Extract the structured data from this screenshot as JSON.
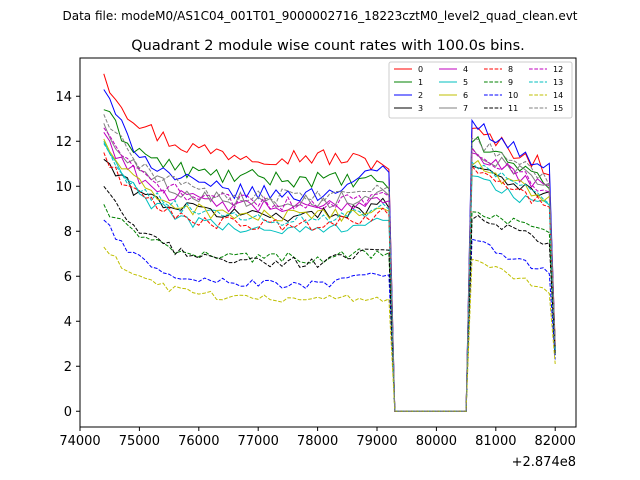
{
  "figure": {
    "suptitle": "Data file: modeM0/AS1C04_001T01_9000002716_18223cztM0_level2_quad_clean.evt",
    "title": "Quadrant 2 module wise count rates with 100.0s bins.",
    "x_offset_label": "+2.874e8"
  },
  "chart_data": {
    "type": "line",
    "title": "Quadrant 2 module wise count rates with 100.0s bins.",
    "xlabel": "",
    "ylabel": "",
    "x_offset": 287400000,
    "xlim": [
      74000,
      82350
    ],
    "ylim": [
      -0.7,
      15.7
    ],
    "xticks": [
      74000,
      75000,
      76000,
      77000,
      78000,
      79000,
      80000,
      81000,
      82000
    ],
    "yticks": [
      0,
      2,
      4,
      6,
      8,
      10,
      12,
      14
    ],
    "grid": false,
    "legend": {
      "position": "top-right",
      "columns": 4
    },
    "segments": {
      "first": {
        "x_start": 74400,
        "x_end": 79200,
        "step": 100
      },
      "gap": [
        79300,
        80500
      ],
      "second": {
        "x_start": 80600,
        "x_end": 82000,
        "step": 100
      }
    },
    "series": [
      {
        "name": "0",
        "color": "#ff0000",
        "dash": "solid",
        "start": 15.0,
        "plateau": 11.3,
        "end_first": 11.0,
        "peak_second": 12.5,
        "end_second": 10.8,
        "final": 3.0
      },
      {
        "name": "1",
        "color": "#008000",
        "dash": "solid",
        "start": 13.4,
        "plateau": 10.3,
        "end_first": 10.1,
        "peak_second": 12.0,
        "end_second": 10.2,
        "final": 2.8
      },
      {
        "name": "2",
        "color": "#0000ff",
        "dash": "solid",
        "start": 14.3,
        "plateau": 9.6,
        "end_first": 10.8,
        "peak_second": 12.9,
        "end_second": 10.7,
        "final": 2.7
      },
      {
        "name": "3",
        "color": "#000000",
        "dash": "solid",
        "start": 11.2,
        "plateau": 8.7,
        "end_first": 9.2,
        "peak_second": 11.0,
        "end_second": 9.5,
        "final": 2.9
      },
      {
        "name": "4",
        "color": "#bf00bf",
        "dash": "solid",
        "start": 12.4,
        "plateau": 9.0,
        "end_first": 9.5,
        "peak_second": 11.5,
        "end_second": 9.8,
        "final": 2.8
      },
      {
        "name": "5",
        "color": "#00bfbf",
        "dash": "solid",
        "start": 12.0,
        "plateau": 8.0,
        "end_first": 8.6,
        "peak_second": 10.4,
        "end_second": 9.0,
        "final": 2.6
      },
      {
        "name": "6",
        "color": "#bfbf00",
        "dash": "solid",
        "start": 12.1,
        "plateau": 8.6,
        "end_first": 9.0,
        "peak_second": 11.0,
        "end_second": 9.4,
        "final": 2.7
      },
      {
        "name": "7",
        "color": "#808080",
        "dash": "solid",
        "start": 12.8,
        "plateau": 9.3,
        "end_first": 9.7,
        "peak_second": 11.7,
        "end_second": 10.0,
        "final": 2.8
      },
      {
        "name": "8",
        "color": "#ff0000",
        "dash": "dashed",
        "start": 11.5,
        "plateau": 8.2,
        "end_first": 8.8,
        "peak_second": 10.8,
        "end_second": 9.0,
        "final": 2.7
      },
      {
        "name": "9",
        "color": "#008000",
        "dash": "dashed",
        "start": 9.2,
        "plateau": 6.8,
        "end_first": 7.1,
        "peak_second": 8.9,
        "end_second": 7.9,
        "final": 2.5
      },
      {
        "name": "10",
        "color": "#0000ff",
        "dash": "dashed",
        "start": 8.5,
        "plateau": 5.6,
        "end_first": 6.1,
        "peak_second": 7.6,
        "end_second": 6.1,
        "final": 2.3
      },
      {
        "name": "11",
        "color": "#000000",
        "dash": "dashed",
        "start": 10.0,
        "plateau": 6.6,
        "end_first": 7.2,
        "peak_second": 8.6,
        "end_second": 7.5,
        "final": 2.5
      },
      {
        "name": "12",
        "color": "#bf00bf",
        "dash": "dashed",
        "start": 12.6,
        "plateau": 9.2,
        "end_first": 9.6,
        "peak_second": 11.7,
        "end_second": 9.8,
        "final": 2.8
      },
      {
        "name": "13",
        "color": "#00bfbf",
        "dash": "dashed",
        "start": 11.9,
        "plateau": 8.5,
        "end_first": 9.0,
        "peak_second": 11.0,
        "end_second": 9.3,
        "final": 2.7
      },
      {
        "name": "14",
        "color": "#bfbf00",
        "dash": "dashed",
        "start": 7.3,
        "plateau": 5.0,
        "end_first": 5.0,
        "peak_second": 6.8,
        "end_second": 5.3,
        "final": 2.1
      },
      {
        "name": "15",
        "color": "#808080",
        "dash": "dashed",
        "start": 13.2,
        "plateau": 9.5,
        "end_first": 10.0,
        "peak_second": 12.1,
        "end_second": 10.2,
        "final": 2.9
      }
    ]
  }
}
